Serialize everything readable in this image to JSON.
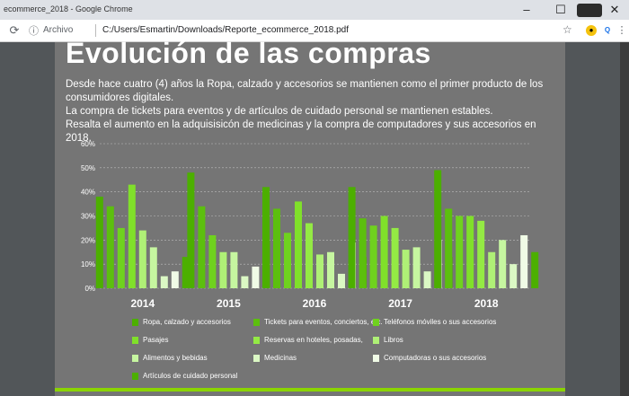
{
  "browser": {
    "tab_title": "ecommerce_2018 - Google Chrome",
    "scheme_label": "Archivo",
    "url": "C:/Users/Esmartin/Downloads/Reporte_ecommerce_2018.pdf",
    "window_controls": {
      "minimize": "–",
      "maximize": "☐",
      "close": "✕"
    }
  },
  "slide": {
    "title": "Evolución de las compras",
    "description": [
      "Desde hace cuatro (4) años la Ropa, calzado y accesorios se mantienen como el primer producto de los consumidores digitales.",
      "La compra de tickets para eventos y de artículos de cuidado personal se mantienen estables.",
      "Resalta el aumento en la  adquisisicón de medicinas y la compra de computadores y sus accesorios en 2018."
    ]
  },
  "colors": {
    "series": [
      "#4caf00",
      "#5cbf0e",
      "#6fd21e",
      "#80e02a",
      "#94ea44",
      "#aff076",
      "#c6f6a0",
      "#dbf8c4",
      "#f0fbe6"
    ],
    "accent_bar": "#8bd400"
  },
  "chart_data": {
    "type": "bar",
    "categories": [
      "2014",
      "2015",
      "2016",
      "2017",
      "2018"
    ],
    "ylim": [
      0,
      60
    ],
    "y_ticks": [
      "0%",
      "10%",
      "20%",
      "30%",
      "40%",
      "50%",
      "60%"
    ],
    "series": [
      {
        "name": "Ropa, calzado y accesorios",
        "values": [
          38,
          48,
          42,
          42,
          49
        ]
      },
      {
        "name": "Tickets para eventos, conciertos, etc.",
        "values": [
          34,
          34,
          33,
          29,
          33
        ]
      },
      {
        "name": "Teléfonos móviles o sus accesorios",
        "values": [
          25,
          22,
          23,
          26,
          30
        ]
      },
      {
        "name": "Pasajes",
        "values": [
          43,
          null,
          36,
          30,
          30
        ]
      },
      {
        "name": "Reservas en hoteles, posadas,",
        "values": [
          null,
          null,
          27,
          25,
          28
        ]
      },
      {
        "name": "Libros",
        "values": [
          24,
          15,
          14,
          16,
          15
        ]
      },
      {
        "name": "Alimentos y bebidas",
        "values": [
          17,
          15,
          15,
          17,
          20
        ]
      },
      {
        "name": "Medicinas",
        "values": [
          5,
          5,
          6,
          7,
          10
        ]
      },
      {
        "name": "Computadoras o sus accesorios",
        "values": [
          7,
          9,
          19,
          20,
          22
        ]
      },
      {
        "name": "Artículos de cuidado personal",
        "values": [
          13,
          20,
          13,
          13,
          15
        ]
      }
    ],
    "grid": true
  }
}
